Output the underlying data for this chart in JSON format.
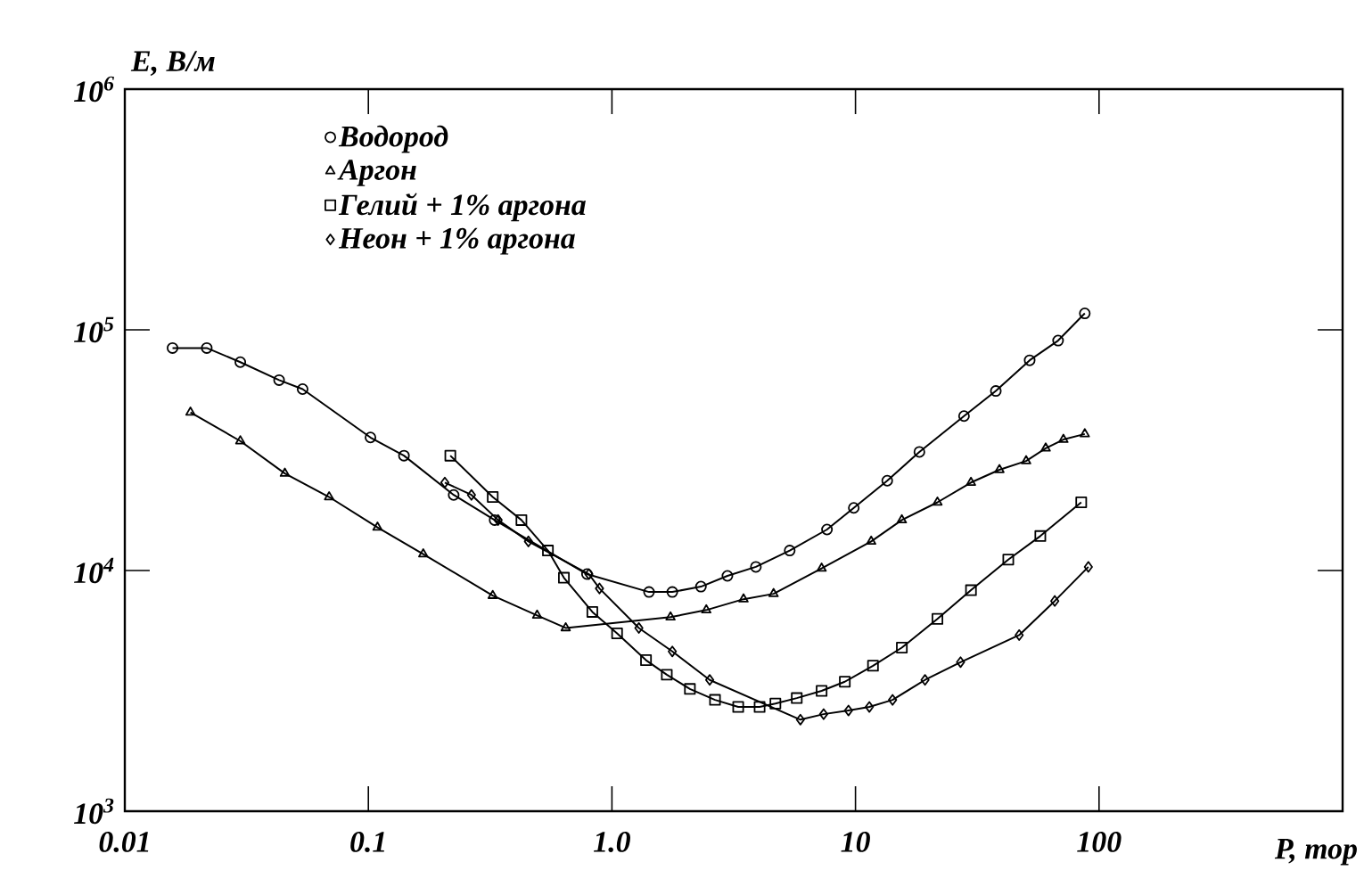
{
  "chart_data": {
    "type": "line",
    "xlabel": "P, тор",
    "ylabel": "E, В/м",
    "log": "xy",
    "legend": "top left",
    "xlim": [
      0.01,
      1000
    ],
    "ylim": [
      1000,
      1000000
    ],
    "xticks": [
      0.01,
      0.1,
      {
        "value": 1,
        "label": "1.0"
      },
      10,
      100
    ],
    "yticks": [
      {
        "value": 1000,
        "label": "10$^{3}$"
      },
      {
        "value": 10000,
        "label": "10$^{4}$"
      },
      {
        "value": 100000,
        "label": "10$^{5}$"
      },
      {
        "value": 1000000,
        "label": "10$^{6}$"
      }
    ],
    "series": [
      {
        "name": "Водород",
        "color": "#000000",
        "marker": "circle",
        "x": [
          0.0157,
          0.0217,
          0.0298,
          0.043,
          0.0537,
          0.102,
          0.14,
          0.224,
          0.33,
          0.79,
          1.42,
          1.77,
          2.32,
          2.98,
          3.9,
          5.37,
          7.64,
          9.84,
          13.5,
          18.3,
          27.9,
          37.7,
          51.9,
          67.9,
          87.4
        ],
        "values": [
          84000,
          84000,
          73400,
          61800,
          56700,
          35700,
          30000,
          20600,
          16200,
          9660,
          8140,
          8140,
          8570,
          9500,
          10350,
          12100,
          14800,
          18200,
          23600,
          31100,
          43800,
          55700,
          74700,
          90200,
          117000
        ]
      },
      {
        "name": "Аргон",
        "color": "#000000",
        "marker": "triangle",
        "x": [
          0.0186,
          0.0298,
          0.0454,
          0.069,
          0.109,
          0.168,
          0.324,
          0.493,
          0.646,
          1.74,
          2.44,
          3.47,
          4.61,
          7.26,
          11.6,
          15.5,
          21.7,
          29.8,
          39.0,
          50.2,
          60.4,
          71.4,
          87.4
        ],
        "values": [
          45400,
          34500,
          25300,
          20200,
          15100,
          11700,
          7860,
          6510,
          5770,
          6400,
          6850,
          7600,
          8000,
          10200,
          13200,
          16200,
          19200,
          23200,
          26200,
          28500,
          32200,
          35000,
          36900
        ]
      },
      {
        "name": "Гелий + 1% аргона",
        "color": "#000000",
        "marker": "square",
        "x": [
          0.217,
          0.324,
          0.425,
          0.546,
          0.635,
          0.831,
          1.05,
          1.38,
          1.68,
          2.09,
          2.65,
          3.3,
          4.04,
          4.69,
          5.74,
          7.26,
          9.04,
          11.8,
          15.5,
          21.7,
          29.8,
          42.4,
          57.4,
          84.5
        ],
        "values": [
          30000,
          20200,
          16200,
          12100,
          9330,
          6730,
          5480,
          4240,
          3690,
          3220,
          2900,
          2710,
          2710,
          2800,
          2950,
          3160,
          3450,
          4020,
          4780,
          6290,
          8280,
          11100,
          13900,
          19200
        ]
      },
      {
        "name": "Неон + 1% аргона",
        "color": "#000000",
        "marker": "diamond",
        "x": [
          0.206,
          0.265,
          0.341,
          0.454,
          0.804,
          0.889,
          1.29,
          1.77,
          2.52,
          5.94,
          7.4,
          9.36,
          11.4,
          14.2,
          19.3,
          27.0,
          47.0,
          65.8,
          90.4
        ],
        "values": [
          23200,
          20600,
          16200,
          13200,
          9660,
          8420,
          5770,
          4610,
          3510,
          2400,
          2530,
          2620,
          2710,
          2900,
          3510,
          4160,
          5390,
          7470,
          10350
        ]
      }
    ]
  }
}
